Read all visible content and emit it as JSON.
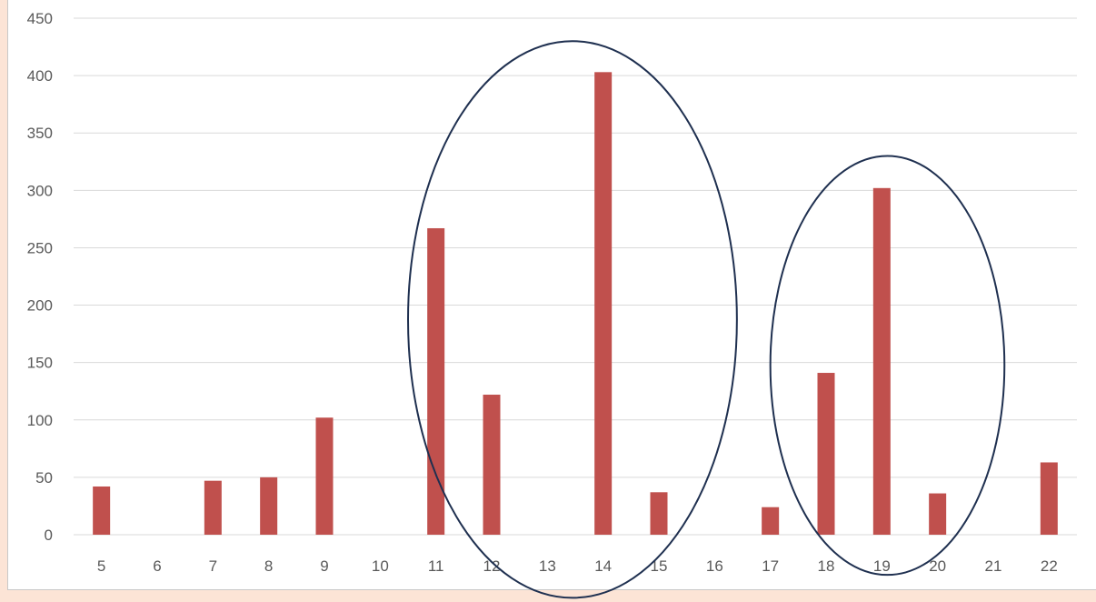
{
  "chart_data": {
    "type": "bar",
    "categories": [
      "5",
      "6",
      "7",
      "8",
      "9",
      "10",
      "11",
      "12",
      "13",
      "14",
      "15",
      "16",
      "17",
      "18",
      "19",
      "20",
      "21",
      "22"
    ],
    "values": [
      42,
      0,
      47,
      50,
      102,
      0,
      267,
      122,
      0,
      403,
      37,
      0,
      24,
      141,
      302,
      36,
      0,
      63
    ],
    "y_ticks": [
      "0",
      "50",
      "100",
      "150",
      "200",
      "250",
      "300",
      "350",
      "400",
      "450"
    ],
    "ylim": [
      0,
      450
    ],
    "grid": true,
    "legend": "none",
    "bar_color": "#c0504d",
    "annotations": [
      {
        "type": "ellipse",
        "x_from": 10.5,
        "x_to": 16.4,
        "y_from": -55,
        "y_to": 430
      },
      {
        "type": "ellipse",
        "x_from": 17.0,
        "x_to": 21.2,
        "y_from": -35,
        "y_to": 330
      }
    ]
  },
  "colors": {
    "background": "#fce4d6",
    "grid": "#d9d9d9",
    "axis_text": "#595959",
    "ellipse": "#1f3050"
  }
}
